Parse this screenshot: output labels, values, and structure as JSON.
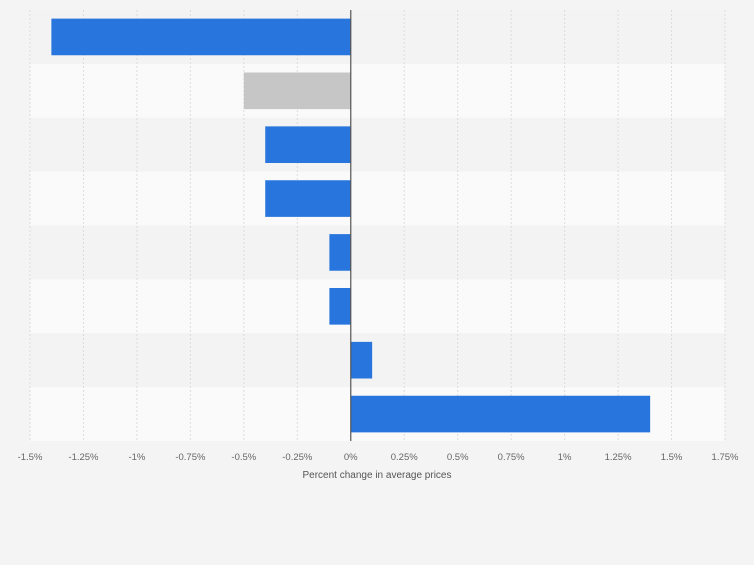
{
  "chart_data": {
    "type": "bar",
    "orientation": "horizontal",
    "title": "",
    "xlabel": "Percent change in average prices",
    "ylabel": "",
    "xlim": [
      -1.5,
      1.75
    ],
    "x_ticks": [
      -1.5,
      -1.25,
      -1,
      -0.75,
      -0.5,
      -0.25,
      0,
      0.25,
      0.5,
      0.75,
      1,
      1.25,
      1.5,
      1.75
    ],
    "x_tick_labels": [
      "-1.5%",
      "-1.25%",
      "-1%",
      "-0.75%",
      "-0.5%",
      "-0.25%",
      "0%",
      "0.25%",
      "0.5%",
      "0.75%",
      "1%",
      "1.25%",
      "1.5%",
      "1.75%"
    ],
    "categories": [
      "",
      "",
      "",
      "",
      "",
      "",
      "",
      ""
    ],
    "values": [
      -1.4,
      -0.5,
      -0.4,
      -0.4,
      -0.1,
      -0.1,
      0.1,
      1.4
    ],
    "bar_colors": [
      "#2876dd",
      "#c6c6c6",
      "#2876dd",
      "#2876dd",
      "#2876dd",
      "#2876dd",
      "#2876dd",
      "#2876dd"
    ],
    "grid": true,
    "legend": "none"
  },
  "colors": {
    "background": "#f4f4f4",
    "plot_band_light": "#fafafa",
    "plot_band_dark": "#f3f3f3",
    "grid": "#dcdcdc",
    "zero_line": "#555555",
    "bar": "#2876dd",
    "bar_highlight": "#c6c6c6",
    "tick_text": "#666666"
  }
}
